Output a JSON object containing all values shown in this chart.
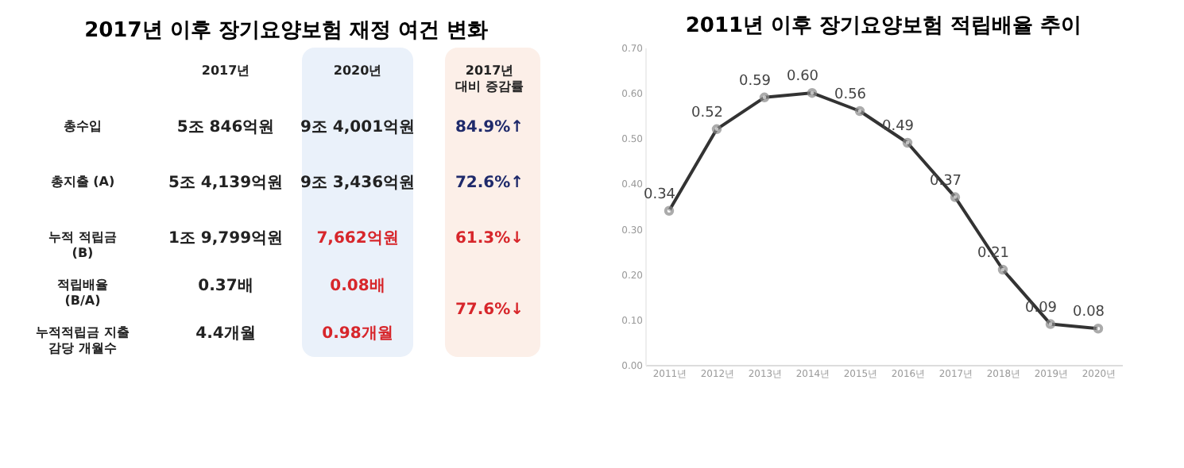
{
  "chart_data": [
    {
      "type": "other",
      "title": "2017년 이후 장기요양보험 재정 여건 변화",
      "annotations": [
        "2017년",
        "2020년",
        "2017년 대비 증감률",
        "총수입",
        "5조 846억원",
        "9조 4,001억원",
        "84.9%↑",
        "총지출 (A)",
        "5조 4,139억원",
        "9조 3,436억원",
        "72.6%↑",
        "누적 적립금 (B)",
        "1조 9,799억원",
        "7,662억원",
        "61.3%↓",
        "적립배율 (B/A)",
        "0.37배",
        "0.08배",
        "77.6%↓",
        "누적적립금 지출 감당 개월수",
        "4.4개월",
        "0.98개월"
      ]
    },
    {
      "type": "line",
      "title": "2011년 이후 장기요양보험 적립배율 추이",
      "categories": [
        "2011년",
        "2012년",
        "2013년",
        "2014년",
        "2015년",
        "2016년",
        "2017년",
        "2018년",
        "2019년",
        "2020년"
      ],
      "series": [
        {
          "color": "#333333",
          "values": [
            0.34,
            0.52,
            0.59,
            0.6,
            0.56,
            0.49,
            0.37,
            0.21,
            0.09,
            0.08
          ],
          "value_labels": [
            "0.34",
            "0.52",
            "0.59",
            "0.60",
            "0.56",
            "0.49",
            "0.37",
            "0.21",
            "0.09",
            "0.08"
          ]
        }
      ],
      "ylim": [
        0,
        0.7
      ],
      "yticks": [
        {
          "value": 0,
          "label": "0.00"
        },
        {
          "value": 0.1,
          "label": "0.10"
        },
        {
          "value": 0.2,
          "label": "0.20"
        },
        {
          "value": 0.3,
          "label": "0.30"
        },
        {
          "value": 0.4,
          "label": "0.40"
        },
        {
          "value": 0.5,
          "label": "0.50"
        },
        {
          "value": 0.6,
          "label": "0.60"
        },
        {
          "value": 0.7,
          "label": "0.70"
        }
      ],
      "marker": "circle",
      "line_style": "solid",
      "grid": false
    }
  ]
}
